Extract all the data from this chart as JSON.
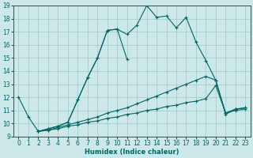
{
  "xlabel": "Humidex (Indice chaleur)",
  "xlim": [
    -0.5,
    23.5
  ],
  "ylim": [
    9,
    19
  ],
  "xticks": [
    0,
    1,
    2,
    3,
    4,
    5,
    6,
    7,
    8,
    9,
    10,
    11,
    12,
    13,
    14,
    15,
    16,
    17,
    18,
    19,
    20,
    21,
    22,
    23
  ],
  "yticks": [
    9,
    10,
    11,
    12,
    13,
    14,
    15,
    16,
    17,
    18,
    19
  ],
  "background_color": "#cde8e8",
  "grid_color": "#a8cccc",
  "line_color": "#006666",
  "curve1": {
    "x": [
      0,
      1,
      2,
      3,
      4,
      5,
      6,
      7,
      8,
      9,
      10,
      11,
      12,
      13,
      14,
      15,
      16,
      17,
      18,
      19,
      20,
      21,
      22,
      23
    ],
    "y": [
      12.0,
      10.5,
      9.4,
      9.6,
      9.8,
      10.1,
      11.8,
      13.5,
      15.0,
      17.1,
      17.2,
      16.8,
      17.5,
      19.0,
      18.1,
      18.2,
      17.3,
      18.1,
      16.2,
      14.8,
      13.3,
      10.7,
      11.1,
      11.2
    ]
  },
  "curve2": {
    "x": [
      2,
      3,
      4,
      5,
      6,
      7,
      8,
      9,
      10,
      11
    ],
    "y": [
      9.4,
      9.6,
      9.8,
      10.1,
      11.8,
      13.5,
      15.0,
      17.1,
      17.2,
      14.9
    ]
  },
  "curve3": {
    "x": [
      2,
      3,
      4,
      5,
      6,
      7,
      8,
      9,
      10,
      11,
      12,
      13,
      14,
      15,
      16,
      17,
      18,
      19,
      20,
      21,
      22,
      23
    ],
    "y": [
      9.4,
      9.5,
      9.7,
      9.9,
      10.1,
      10.3,
      10.5,
      10.8,
      11.0,
      11.2,
      11.5,
      11.8,
      12.1,
      12.4,
      12.7,
      13.0,
      13.3,
      13.6,
      13.3,
      10.8,
      11.1,
      11.2
    ]
  },
  "curve4": {
    "x": [
      2,
      3,
      4,
      5,
      6,
      7,
      8,
      9,
      10,
      11,
      12,
      13,
      14,
      15,
      16,
      17,
      18,
      19,
      20,
      21,
      22,
      23
    ],
    "y": [
      9.4,
      9.5,
      9.6,
      9.8,
      9.9,
      10.1,
      10.2,
      10.4,
      10.5,
      10.7,
      10.8,
      11.0,
      11.1,
      11.3,
      11.4,
      11.6,
      11.7,
      11.9,
      12.9,
      10.8,
      11.0,
      11.1
    ]
  }
}
